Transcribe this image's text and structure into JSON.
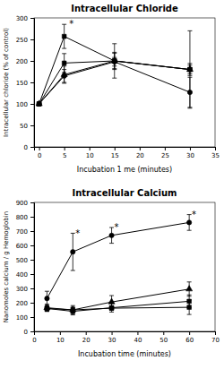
{
  "chart_data": [
    {
      "type": "line",
      "title": "Intracellular Chloride",
      "xlabel": "Incubation 1 me (minutes)",
      "ylabel": "Intracellular chloride (% of control)",
      "xlim": [
        -1,
        35
      ],
      "ylim": [
        0,
        300
      ],
      "xticks": [
        0,
        5,
        10,
        15,
        20,
        25,
        30,
        35
      ],
      "yticks": [
        0,
        50,
        100,
        150,
        200,
        250,
        300
      ],
      "grid": false,
      "series": [
        {
          "x": [
            0,
            5,
            15,
            30
          ],
          "values": [
            100,
            257,
            200,
            180
          ],
          "yerr": [
            2,
            28,
            40,
            90
          ],
          "marker": "square",
          "color": "black"
        },
        {
          "x": [
            0,
            5,
            15,
            30
          ],
          "values": [
            100,
            195,
            200,
            180
          ],
          "yerr": [
            2,
            22,
            18,
            14
          ],
          "marker": "square",
          "color": "black"
        },
        {
          "x": [
            0,
            5,
            15,
            30
          ],
          "values": [
            100,
            168,
            200,
            180
          ],
          "yerr": [
            2,
            20,
            20,
            10
          ],
          "marker": "triangle",
          "color": "black"
        },
        {
          "x": [
            0,
            5,
            15,
            30
          ],
          "values": [
            100,
            165,
            198,
            127
          ],
          "yerr": [
            2,
            15,
            10,
            35
          ],
          "marker": "circle",
          "color": "black"
        }
      ],
      "annotations": [
        {
          "text": "*",
          "x": 6,
          "y": 290
        }
      ]
    },
    {
      "type": "line",
      "title": "Intracellular Calcium",
      "xlabel": "Incubation time (minutes)",
      "ylabel": "Nanomoles calcium / g Hemoglobin",
      "xlim": [
        0,
        70
      ],
      "ylim": [
        0,
        900
      ],
      "xticks": [
        0,
        10,
        20,
        30,
        40,
        50,
        60,
        70
      ],
      "yticks": [
        0,
        100,
        200,
        300,
        400,
        500,
        600,
        700,
        800,
        900
      ],
      "grid": false,
      "series": [
        {
          "x": [
            5,
            15,
            30,
            60
          ],
          "values": [
            230,
            555,
            670,
            760
          ],
          "yerr": [
            50,
            130,
            55,
            55
          ],
          "marker": "circle",
          "color": "black"
        },
        {
          "x": [
            5,
            15,
            30,
            60
          ],
          "values": [
            165,
            150,
            205,
            295
          ],
          "yerr": [
            25,
            30,
            45,
            50
          ],
          "marker": "triangle",
          "color": "black"
        },
        {
          "x": [
            5,
            15,
            30,
            60
          ],
          "values": [
            160,
            140,
            165,
            210
          ],
          "yerr": [
            20,
            25,
            30,
            45
          ],
          "marker": "square",
          "color": "black"
        },
        {
          "x": [
            5,
            15,
            30,
            60
          ],
          "values": [
            160,
            150,
            162,
            168
          ],
          "yerr": [
            20,
            20,
            15,
            50
          ],
          "marker": "square",
          "color": "black"
        }
      ],
      "annotations": [
        {
          "text": "*",
          "x": 16,
          "y": 695
        },
        {
          "text": "*",
          "x": 31,
          "y": 735
        },
        {
          "text": "*",
          "x": 61,
          "y": 825
        }
      ]
    }
  ]
}
